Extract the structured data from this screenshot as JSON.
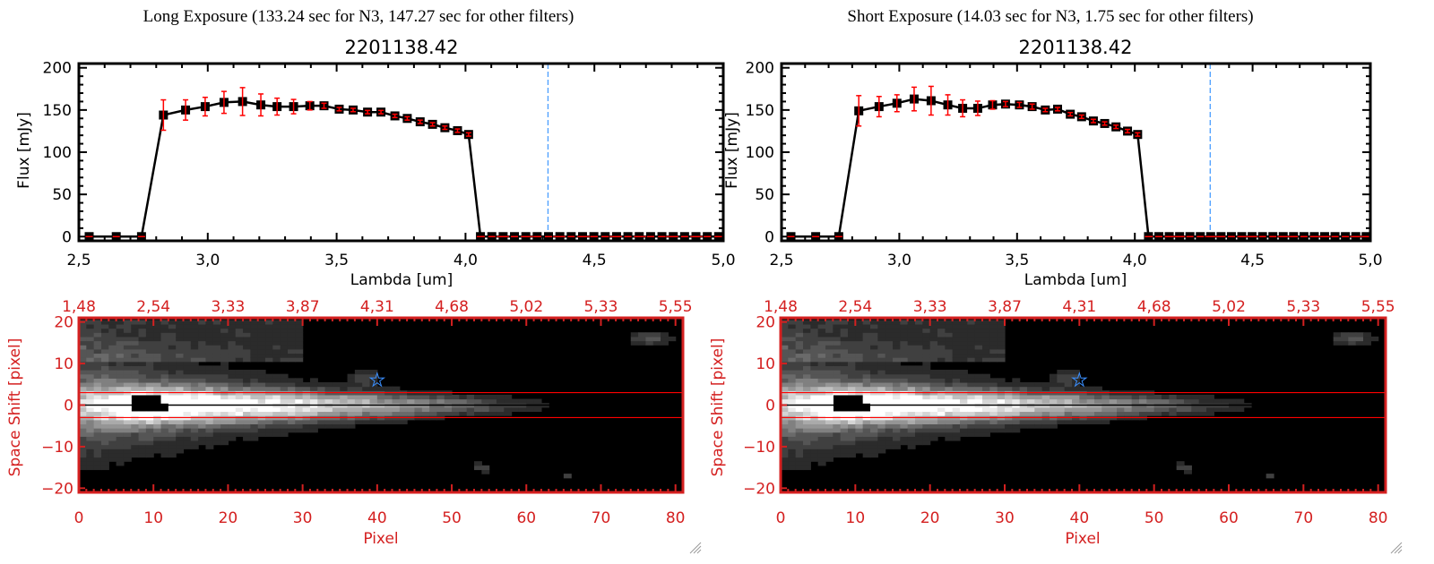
{
  "colors": {
    "frame_top": "#000000",
    "errorbar": "#ff0000",
    "marker": "#000000",
    "dashed_line": "#4a9eff",
    "image_axes": "#d42020",
    "band_lines": "#ff0000",
    "star": "#3a8fff"
  },
  "panels": [
    {
      "heading": "Long Exposure (133.24 sec for N3, 147.27 sec for other filters)",
      "object_id": "2201138.42"
    },
    {
      "heading": "Short Exposure (14.03 sec for N3, 1.75 sec for other filters)",
      "object_id": "2201138.42"
    }
  ],
  "chart_data": [
    {
      "type": "line",
      "title": "2201138.42",
      "xlabel": "Lambda [um]",
      "ylabel": "Flux [mJy]",
      "xlim": [
        2.5,
        5.0
      ],
      "ylim": [
        -5,
        205
      ],
      "xticks": [
        "2.5",
        "3.0",
        "3.5",
        "4.0",
        "4.5",
        "5.0"
      ],
      "yticks": [
        "0",
        "50",
        "100",
        "150",
        "200"
      ],
      "vline": 4.32,
      "zero_level_dashed": true,
      "x": [
        2.54,
        2.645,
        2.743,
        2.828,
        2.914,
        2.99,
        3.063,
        3.135,
        3.206,
        3.269,
        3.333,
        3.396,
        3.451,
        3.51,
        3.564,
        3.62,
        3.672,
        3.726,
        3.774,
        3.824,
        3.872,
        3.92,
        3.969,
        4.012,
        4.058,
        4.102,
        4.146,
        4.19,
        4.234,
        4.278,
        4.322,
        4.366,
        4.41,
        4.454,
        4.498,
        4.542,
        4.586,
        4.63,
        4.674,
        4.718,
        4.762,
        4.806,
        4.85,
        4.894,
        4.938,
        4.982
      ],
      "y": [
        0,
        0,
        0,
        144,
        150,
        154,
        159,
        160,
        156,
        154,
        154,
        155,
        155,
        151,
        150,
        147.5,
        147.5,
        143,
        140,
        136,
        133,
        129,
        125.5,
        121,
        0,
        0,
        0,
        0,
        0,
        0,
        0,
        0,
        0,
        0,
        0,
        0,
        0,
        0,
        0,
        0,
        0,
        0,
        0,
        0,
        0,
        0
      ],
      "yerr": [
        0,
        0,
        0,
        18,
        12,
        11,
        13,
        16.5,
        13,
        10,
        8.5,
        5,
        3,
        2,
        2,
        2,
        2,
        2,
        2,
        2,
        2,
        2,
        2,
        2,
        0,
        0,
        0,
        0,
        0,
        0,
        0,
        0,
        0,
        0,
        0,
        0,
        0,
        0,
        0,
        0,
        0,
        0,
        0,
        0,
        0,
        0
      ]
    },
    {
      "type": "line",
      "title": "2201138.42",
      "xlabel": "Lambda [um]",
      "ylabel": "Flux [mJy]",
      "xlim": [
        2.5,
        5.0
      ],
      "ylim": [
        -5,
        205
      ],
      "xticks": [
        "2.5",
        "3.0",
        "3.5",
        "4.0",
        "4.5",
        "5.0"
      ],
      "yticks": [
        "0",
        "50",
        "100",
        "150",
        "200"
      ],
      "vline": 4.32,
      "zero_level_dashed": true,
      "x": [
        2.54,
        2.645,
        2.743,
        2.828,
        2.914,
        2.99,
        3.063,
        3.135,
        3.206,
        3.269,
        3.333,
        3.396,
        3.451,
        3.51,
        3.564,
        3.62,
        3.672,
        3.726,
        3.774,
        3.824,
        3.872,
        3.92,
        3.969,
        4.012,
        4.058,
        4.102,
        4.146,
        4.19,
        4.234,
        4.278,
        4.322,
        4.366,
        4.41,
        4.454,
        4.498,
        4.542,
        4.586,
        4.63,
        4.674,
        4.718,
        4.762,
        4.806,
        4.85,
        4.894,
        4.938,
        4.982
      ],
      "y": [
        0,
        0,
        0,
        149,
        154,
        158,
        163,
        161,
        156,
        152,
        152,
        156,
        157,
        156,
        154,
        150,
        151,
        145,
        142,
        137,
        134,
        130,
        125,
        121,
        0,
        0,
        0,
        0,
        0,
        0,
        0,
        0,
        0,
        0,
        0,
        0,
        0,
        0,
        0,
        0,
        0,
        0,
        0,
        0,
        0,
        0
      ],
      "yerr": [
        0,
        0,
        0,
        18,
        12,
        10,
        14,
        17,
        12,
        10,
        8.5,
        5,
        3,
        3,
        3,
        2,
        2,
        2,
        2,
        2,
        2,
        2,
        2,
        2,
        0,
        0,
        0,
        0,
        0,
        0,
        0,
        0,
        0,
        0,
        0,
        0,
        0,
        0,
        0,
        0,
        0,
        0,
        0,
        0,
        0,
        0
      ]
    },
    {
      "type": "heatmap",
      "xlabel": "Pixel",
      "ylabel": "Space Shift [pixel]",
      "xlim": [
        0,
        81
      ],
      "ylim": [
        -21,
        21
      ],
      "xticks": [
        "0",
        "10",
        "20",
        "30",
        "40",
        "50",
        "60",
        "70",
        "80"
      ],
      "top_xticks": [
        "1.48",
        "2.54",
        "3.33",
        "3.87",
        "4.31",
        "4.68",
        "5.02",
        "5.33",
        "5.55"
      ],
      "yticks": [
        "-20",
        "-10",
        "0",
        "10",
        "20"
      ],
      "aperture_lines": [
        -3,
        3
      ],
      "center_line": 0,
      "star_marker": [
        40,
        6
      ]
    },
    {
      "type": "heatmap",
      "xlabel": "Pixel",
      "ylabel": "Space Shift [pixel]",
      "xlim": [
        0,
        81
      ],
      "ylim": [
        -21,
        21
      ],
      "xticks": [
        "0",
        "10",
        "20",
        "30",
        "40",
        "50",
        "60",
        "70",
        "80"
      ],
      "top_xticks": [
        "1.48",
        "2.54",
        "3.33",
        "3.87",
        "4.31",
        "4.68",
        "5.02",
        "5.33",
        "5.55"
      ],
      "yticks": [
        "-20",
        "-10",
        "0",
        "10",
        "20"
      ],
      "aperture_lines": [
        -3,
        3
      ],
      "center_line": 0,
      "star_marker": [
        40,
        6
      ]
    }
  ]
}
